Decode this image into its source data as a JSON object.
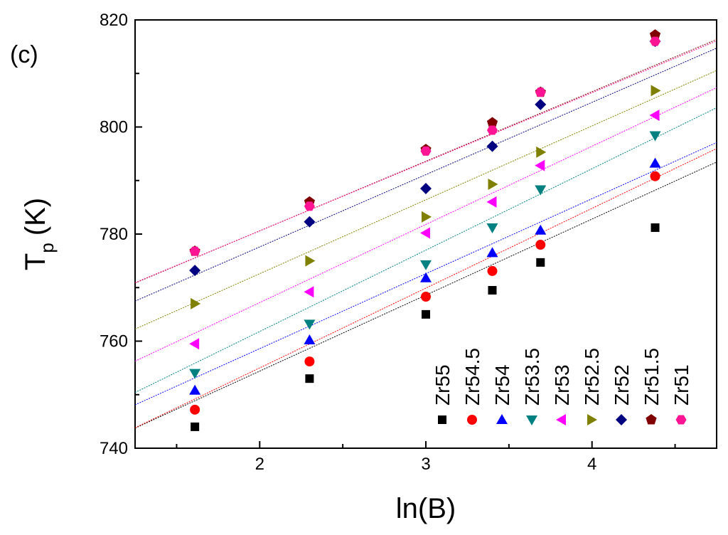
{
  "chart_data": {
    "type": "scatter",
    "panel_label": "(c)",
    "xlabel": "ln(B)",
    "ylabel_main": "T",
    "ylabel_sub": "p",
    "ylabel_unit": "(K)",
    "xlim": [
      1.25,
      4.75
    ],
    "ylim": [
      740,
      820
    ],
    "x_ticks": [
      2,
      3,
      4
    ],
    "y_ticks": [
      740,
      760,
      780,
      800,
      820
    ],
    "x": [
      1.61,
      2.3,
      3.0,
      3.4,
      3.69,
      4.38
    ],
    "series": [
      {
        "name": "Zr55",
        "marker": "square",
        "color": "#000000",
        "values": [
          744.0,
          753.0,
          765.0,
          769.5,
          774.7,
          781.2
        ],
        "fit": [
          726.0,
          14.2
        ]
      },
      {
        "name": "Zr54.5",
        "marker": "circle",
        "color": "#ff0000",
        "values": [
          747.2,
          756.2,
          768.3,
          773.1,
          778.0,
          790.8
        ],
        "fit": [
          725.2,
          14.9
        ]
      },
      {
        "name": "Zr54",
        "marker": "triangle-up",
        "color": "#0000ff",
        "values": [
          750.8,
          760.2,
          771.8,
          776.5,
          780.7,
          793.2
        ],
        "fit": [
          730.6,
          14.0
        ]
      },
      {
        "name": "Zr53.5",
        "marker": "triangle-down",
        "color": "#008080",
        "values": [
          754.0,
          763.2,
          774.3,
          781.2,
          788.3,
          798.4
        ],
        "fit": [
          731.4,
          15.2
        ]
      },
      {
        "name": "Zr53",
        "marker": "triangle-left",
        "color": "#ff00ff",
        "values": [
          759.5,
          769.2,
          780.2,
          786.0,
          792.8,
          802.2
        ],
        "fit": [
          738.0,
          14.6
        ]
      },
      {
        "name": "Zr52.5",
        "marker": "triangle-right",
        "color": "#808000",
        "values": [
          767.0,
          775.0,
          783.2,
          789.3,
          795.3,
          806.8
        ],
        "fit": [
          745.0,
          13.8
        ]
      },
      {
        "name": "Zr52",
        "marker": "diamond",
        "color": "#000080",
        "values": [
          773.2,
          782.3,
          788.5,
          796.4,
          804.2,
          816.0
        ],
        "fit": [
          750.6,
          13.5
        ]
      },
      {
        "name": "Zr51.5",
        "marker": "pentagon",
        "color": "#800000",
        "values": [
          776.8,
          786.0,
          795.8,
          800.8,
          806.5,
          817.2
        ],
        "fit": [
          754.6,
          13.0
        ]
      },
      {
        "name": "Zr51",
        "marker": "hexagon",
        "color": "#ff1493",
        "values": [
          776.8,
          785.2,
          795.5,
          799.4,
          806.5,
          816.0
        ],
        "fit": [
          754.8,
          12.9
        ]
      }
    ],
    "legend_placement": "bottom-right",
    "grid": false
  }
}
